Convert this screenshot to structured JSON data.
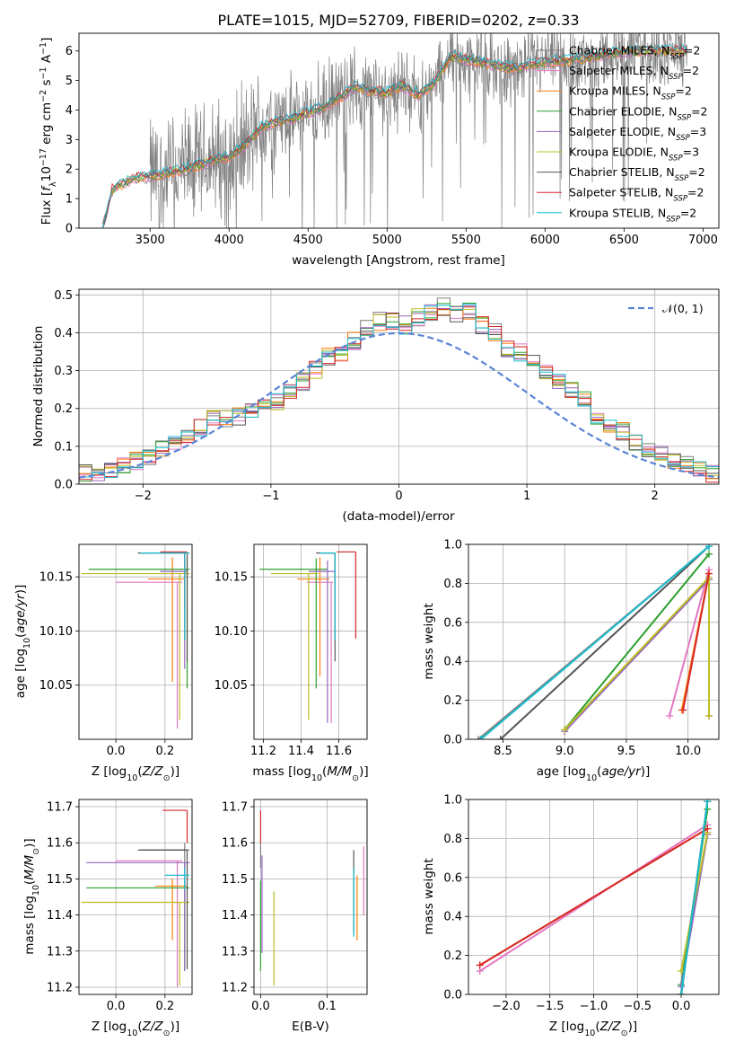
{
  "figure_title": "PLATE=1015, MJD=52709, FIBERID=0202, z=0.33",
  "model_colors": {
    "Chabrier MILES": "#7f7f7f",
    "Salpeter MILES": "#e377c2",
    "Kroupa MILES": "#ff7f0e",
    "Chabrier ELODIE": "#2ca02c",
    "Salpeter ELODIE": "#9467bd",
    "Kroupa ELODIE": "#bcbd22",
    "Chabrier STELIB": "#555555",
    "Salpeter STELIB": "#d62728",
    "Kroupa STELIB": "#17becf"
  },
  "chart_data": [
    {
      "id": "spectrum",
      "type": "line",
      "title": "PLATE=1015, MJD=52709, FIBERID=0202, z=0.33",
      "xlabel": "wavelength [Angstrom, rest frame]",
      "ylabel": "Flux [f_λ 10^-17 erg cm^-2 s^-1 A^-1]",
      "xlim": [
        3050,
        7100
      ],
      "ylim": [
        0,
        6.6
      ],
      "xticks": [
        3500,
        4000,
        4500,
        5000,
        5500,
        6000,
        6500,
        7000
      ],
      "yticks": [
        0,
        1,
        2,
        3,
        4,
        5,
        6
      ],
      "legend_position": "upper right",
      "series": [
        {
          "name": "Chabrier MILES, N_SSP=2",
          "color": "#7f7f7f"
        },
        {
          "name": "Salpeter MILES, N_SSP=2",
          "color": "#e377c2"
        },
        {
          "name": "Kroupa MILES, N_SSP=2",
          "color": "#ff7f0e"
        },
        {
          "name": "Chabrier ELODIE, N_SSP=2",
          "color": "#2ca02c"
        },
        {
          "name": "Salpeter ELODIE, N_SSP=3",
          "color": "#9467bd"
        },
        {
          "name": "Kroupa ELODIE, N_SSP=3",
          "color": "#bcbd22"
        },
        {
          "name": "Chabrier STELIB, N_SSP=2",
          "color": "#555555"
        },
        {
          "name": "Salpeter STELIB, N_SSP=2",
          "color": "#d62728"
        },
        {
          "name": "Kroupa STELIB, N_SSP=2",
          "color": "#17becf"
        }
      ],
      "continuum_x": [
        3200,
        3260,
        3400,
        3500,
        3600,
        3700,
        3800,
        3900,
        4000,
        4100,
        4200,
        4300,
        4400,
        4500,
        4600,
        4700,
        4800,
        4900,
        5000,
        5100,
        5200,
        5300,
        5400,
        5500,
        5600,
        5800,
        6000,
        6200,
        6400,
        6600,
        6800,
        6900
      ],
      "continuum_y": [
        0.0,
        1.3,
        1.7,
        1.75,
        1.85,
        1.95,
        2.1,
        2.3,
        2.4,
        2.8,
        3.4,
        3.6,
        3.7,
        3.9,
        4.1,
        4.4,
        4.8,
        4.6,
        4.6,
        4.8,
        4.5,
        4.9,
        5.8,
        5.7,
        5.6,
        5.4,
        5.6,
        5.7,
        5.9,
        6.0,
        6.0,
        6.0
      ],
      "noisy_data_range": [
        3500,
        6900
      ]
    },
    {
      "id": "residuals",
      "type": "histogram",
      "xlabel": "(data-model)/error",
      "ylabel": "Normed distribution",
      "xlim": [
        -2.5,
        2.5
      ],
      "ylim": [
        0,
        0.515
      ],
      "xticks": [
        -2,
        -1,
        0,
        1,
        2
      ],
      "yticks": [
        0.0,
        0.1,
        0.2,
        0.3,
        0.4,
        0.5
      ],
      "grid": true,
      "legend_position": "upper right",
      "reference_curve": {
        "name": "𝒩(0, 1)",
        "mean": 0,
        "sigma": 1,
        "color": "#5b84d6",
        "style": "dashed"
      },
      "bin_width": 0.1,
      "bin_start": -2.5,
      "base_values": [
        0.03,
        0.03,
        0.04,
        0.05,
        0.06,
        0.07,
        0.09,
        0.11,
        0.13,
        0.15,
        0.17,
        0.17,
        0.18,
        0.2,
        0.21,
        0.22,
        0.25,
        0.27,
        0.3,
        0.34,
        0.35,
        0.38,
        0.41,
        0.43,
        0.43,
        0.42,
        0.44,
        0.45,
        0.47,
        0.45,
        0.46,
        0.42,
        0.4,
        0.36,
        0.35,
        0.33,
        0.3,
        0.27,
        0.25,
        0.23,
        0.18,
        0.15,
        0.14,
        0.11,
        0.09,
        0.08,
        0.06,
        0.05,
        0.04,
        0.03
      ]
    },
    {
      "id": "age_vs_Z",
      "type": "scatter",
      "xlabel": "Z [log10(Z/Z⊙)]",
      "ylabel": "age  [log10(age/yr)]",
      "xlim": [
        -0.15,
        0.31
      ],
      "ylim": [
        10.0,
        10.18
      ],
      "xticks": [
        0.0,
        0.2
      ],
      "yticks": [
        10.05,
        10.1,
        10.15
      ],
      "grid": true,
      "points": [
        {
          "model": "Chabrier MILES",
          "color": "#7f7f7f",
          "x": 0.28,
          "y": 10.172,
          "x_err": [
            0.18,
            0.02
          ],
          "y_err": [
            0.08,
            0.0
          ]
        },
        {
          "model": "Salpeter MILES",
          "color": "#e377c2",
          "x": 0.25,
          "y": 10.145,
          "x_err": [
            0.25,
            0.02
          ],
          "y_err": [
            0.135,
            0.0
          ]
        },
        {
          "model": "Kroupa MILES",
          "color": "#ff7f0e",
          "x": 0.23,
          "y": 10.148,
          "x_err": [
            0.1,
            0.05
          ],
          "y_err": [
            0.095,
            0.02
          ]
        },
        {
          "model": "Chabrier ELODIE",
          "color": "#2ca02c",
          "x": 0.29,
          "y": 10.157,
          "x_err": [
            0.4,
            0.01
          ],
          "y_err": [
            0.11,
            0.01
          ]
        },
        {
          "model": "Salpeter ELODIE",
          "color": "#9467bd",
          "x": 0.28,
          "y": 10.155,
          "x_err": [
            0.1,
            0.01
          ],
          "y_err": [
            0.09,
            0.01
          ]
        },
        {
          "model": "Kroupa ELODIE",
          "color": "#bcbd22",
          "x": 0.26,
          "y": 10.153,
          "x_err": [
            0.4,
            0.04
          ],
          "y_err": [
            0.135,
            0.0
          ]
        },
        {
          "model": "Chabrier STELIB",
          "color": "#555555",
          "x": 0.29,
          "y": 10.172,
          "x_err": [
            0.2,
            0.0
          ],
          "y_err": [
            0.1,
            0.0
          ]
        },
        {
          "model": "Salpeter STELIB",
          "color": "#d62728",
          "x": 0.28,
          "y": 10.173,
          "x_err": [
            0.1,
            0.01
          ],
          "y_err": [
            0.05,
            0.0
          ]
        },
        {
          "model": "Kroupa STELIB",
          "color": "#17becf",
          "x": 0.28,
          "y": 10.172,
          "x_err": [
            0.18,
            0.02
          ],
          "y_err": [
            0.08,
            0.0
          ]
        }
      ]
    },
    {
      "id": "age_vs_mass",
      "type": "scatter",
      "xlabel": "mass [log10(M/M⊙)]",
      "xlim": [
        11.15,
        11.75
      ],
      "ylim": [
        10.0,
        10.18
      ],
      "xticks": [
        11.2,
        11.4,
        11.6
      ],
      "yticks": [
        10.05,
        10.1,
        10.15
      ],
      "grid": true,
      "points": [
        {
          "model": "Chabrier MILES",
          "color": "#7f7f7f",
          "x": 11.58,
          "y": 10.172,
          "x_err": [
            0.08,
            0.0
          ],
          "y_err": [
            0.08,
            0.0
          ]
        },
        {
          "model": "Salpeter MILES",
          "color": "#e377c2",
          "x": 11.56,
          "y": 10.145,
          "x_err": [
            0.13,
            0.01
          ],
          "y_err": [
            0.13,
            0.0
          ]
        },
        {
          "model": "Kroupa MILES",
          "color": "#ff7f0e",
          "x": 11.5,
          "y": 10.148,
          "x_err": [
            0.12,
            0.05
          ],
          "y_err": [
            0.09,
            0.02
          ]
        },
        {
          "model": "Chabrier ELODIE",
          "color": "#2ca02c",
          "x": 11.48,
          "y": 10.157,
          "x_err": [
            0.3,
            0.06
          ],
          "y_err": [
            0.11,
            0.01
          ]
        },
        {
          "model": "Salpeter ELODIE",
          "color": "#9467bd",
          "x": 11.54,
          "y": 10.155,
          "x_err": [
            0.1,
            0.04
          ],
          "y_err": [
            0.14,
            0.01
          ]
        },
        {
          "model": "Kroupa ELODIE",
          "color": "#bcbd22",
          "x": 11.44,
          "y": 10.153,
          "x_err": [
            0.2,
            0.05
          ],
          "y_err": [
            0.135,
            0.0
          ]
        },
        {
          "model": "Chabrier STELIB",
          "color": "#555555",
          "x": 11.58,
          "y": 10.172,
          "x_err": [
            0.1,
            0.0
          ],
          "y_err": [
            0.1,
            0.0
          ]
        },
        {
          "model": "Salpeter STELIB",
          "color": "#d62728",
          "x": 11.69,
          "y": 10.173,
          "x_err": [
            0.1,
            0.0
          ],
          "y_err": [
            0.08,
            0.0
          ]
        },
        {
          "model": "Kroupa STELIB",
          "color": "#17becf",
          "x": 11.58,
          "y": 10.172,
          "x_err": [
            0.08,
            0.0
          ],
          "y_err": [
            0.08,
            0.0
          ]
        }
      ]
    },
    {
      "id": "weight_vs_age",
      "type": "line",
      "xlabel": "age  [log10(age/yr)]",
      "ylabel": "mass weight",
      "xlim": [
        8.22,
        10.25
      ],
      "ylim": [
        0.0,
        1.0
      ],
      "xticks": [
        8.5,
        9.0,
        9.5,
        10.0
      ],
      "yticks": [
        0.0,
        0.2,
        0.4,
        0.6,
        0.8,
        1.0
      ],
      "grid": true,
      "series": [
        {
          "model": "Chabrier MILES",
          "color": "#7f7f7f",
          "x": [
            8.3,
            10.17
          ],
          "y": [
            0.0,
            0.99
          ]
        },
        {
          "model": "Salpeter MILES",
          "color": "#e377c2",
          "x": [
            9.85,
            10.17
          ],
          "y": [
            0.12,
            0.87
          ]
        },
        {
          "model": "Kroupa MILES",
          "color": "#ff7f0e",
          "x": [
            9.95,
            10.17
          ],
          "y": [
            0.15,
            0.85
          ]
        },
        {
          "model": "Chabrier ELODIE",
          "color": "#2ca02c",
          "x": [
            9.0,
            10.17
          ],
          "y": [
            0.05,
            0.95
          ]
        },
        {
          "model": "Salpeter ELODIE",
          "color": "#9467bd",
          "x": [
            9.0,
            10.17,
            10.17
          ],
          "y": [
            0.04,
            0.82,
            0.12
          ]
        },
        {
          "model": "Kroupa ELODIE",
          "color": "#bcbd22",
          "x": [
            9.0,
            10.17,
            10.17
          ],
          "y": [
            0.05,
            0.83,
            0.12
          ]
        },
        {
          "model": "Chabrier STELIB",
          "color": "#555555",
          "x": [
            8.48,
            10.17
          ],
          "y": [
            0.0,
            0.99
          ]
        },
        {
          "model": "Salpeter STELIB",
          "color": "#d62728",
          "x": [
            9.96,
            10.17
          ],
          "y": [
            0.15,
            0.85
          ]
        },
        {
          "model": "Kroupa STELIB",
          "color": "#17becf",
          "x": [
            8.32,
            10.17
          ],
          "y": [
            0.0,
            0.99
          ]
        }
      ]
    },
    {
      "id": "mass_vs_Z",
      "type": "scatter",
      "xlabel": "Z [log10(Z/Z⊙)]",
      "ylabel": "mass [log10(M/M⊙)]",
      "xlim": [
        -0.15,
        0.31
      ],
      "ylim": [
        11.18,
        11.72
      ],
      "xticks": [
        0.0,
        0.2
      ],
      "yticks": [
        11.2,
        11.3,
        11.4,
        11.5,
        11.6,
        11.7
      ],
      "grid": true,
      "points": [
        {
          "model": "Chabrier MILES",
          "color": "#7f7f7f",
          "x": 0.28,
          "y": 11.58,
          "x_err": [
            0.18,
            0.02
          ],
          "y_err": [
            0.05,
            0.02
          ]
        },
        {
          "model": "Salpeter MILES",
          "color": "#e377c2",
          "x": 0.25,
          "y": 11.55,
          "x_err": [
            0.25,
            0.02
          ],
          "y_err": [
            0.35,
            0.0
          ]
        },
        {
          "model": "Kroupa MILES",
          "color": "#ff7f0e",
          "x": 0.23,
          "y": 11.48,
          "x_err": [
            0.07,
            0.06
          ],
          "y_err": [
            0.15,
            0.02
          ]
        },
        {
          "model": "Chabrier ELODIE",
          "color": "#2ca02c",
          "x": 0.28,
          "y": 11.475,
          "x_err": [
            0.4,
            0.02
          ],
          "y_err": [
            0.23,
            0.02
          ]
        },
        {
          "model": "Salpeter ELODIE",
          "color": "#9467bd",
          "x": 0.28,
          "y": 11.545,
          "x_err": [
            0.4,
            0.02
          ],
          "y_err": [
            0.3,
            0.0
          ]
        },
        {
          "model": "Kroupa ELODIE",
          "color": "#bcbd22",
          "x": 0.26,
          "y": 11.435,
          "x_err": [
            0.4,
            0.04
          ],
          "y_err": [
            0.23,
            0.0
          ]
        },
        {
          "model": "Chabrier STELIB",
          "color": "#555555",
          "x": 0.29,
          "y": 11.58,
          "x_err": [
            0.2,
            0.0
          ],
          "y_err": [
            0.33,
            0.0
          ]
        },
        {
          "model": "Salpeter STELIB",
          "color": "#d62728",
          "x": 0.29,
          "y": 11.69,
          "x_err": [
            0.1,
            0.0
          ],
          "y_err": [
            0.09,
            0.0
          ]
        },
        {
          "model": "Kroupa STELIB",
          "color": "#17becf",
          "x": 0.28,
          "y": 11.51,
          "x_err": [
            0.08,
            0.02
          ],
          "y_err": [
            0.04,
            0.02
          ]
        }
      ]
    },
    {
      "id": "mass_vs_ebv",
      "type": "scatter",
      "xlabel": "E(B-V)",
      "xlim": [
        -0.01,
        0.16
      ],
      "ylim": [
        11.18,
        11.72
      ],
      "xticks": [
        0.0,
        0.1
      ],
      "yticks": [
        11.2,
        11.3,
        11.4,
        11.5,
        11.6,
        11.7
      ],
      "grid": true,
      "points": [
        {
          "model": "Chabrier MILES",
          "color": "#7f7f7f",
          "x": 0.0,
          "y": 11.58,
          "y_err": [
            0.05,
            0.02
          ]
        },
        {
          "model": "Salpeter MILES",
          "color": "#e377c2",
          "x": 0.155,
          "y": 11.55,
          "y_err": [
            0.15,
            0.04
          ]
        },
        {
          "model": "Kroupa MILES",
          "color": "#ff7f0e",
          "x": 0.145,
          "y": 11.48,
          "y_err": [
            0.15,
            0.03
          ]
        },
        {
          "model": "Chabrier ELODIE",
          "color": "#2ca02c",
          "x": 0.0,
          "y": 11.475,
          "y_err": [
            0.23,
            0.02
          ]
        },
        {
          "model": "Salpeter ELODIE",
          "color": "#9467bd",
          "x": 0.002,
          "y": 11.545,
          "y_err": [
            0.25,
            0.02
          ]
        },
        {
          "model": "Kroupa ELODIE",
          "color": "#bcbd22",
          "x": 0.02,
          "y": 11.435,
          "y_err": [
            0.23,
            0.03
          ]
        },
        {
          "model": "Chabrier STELIB",
          "color": "#555555",
          "x": 0.14,
          "y": 11.58,
          "y_err": [
            0.23,
            0.0
          ]
        },
        {
          "model": "Salpeter STELIB",
          "color": "#d62728",
          "x": 0.0,
          "y": 11.69,
          "y_err": [
            0.09,
            0.0
          ]
        },
        {
          "model": "Kroupa STELIB",
          "color": "#17becf",
          "x": 0.14,
          "y": 11.51,
          "y_err": [
            0.17,
            0.02
          ]
        }
      ]
    },
    {
      "id": "weight_vs_Z",
      "type": "line",
      "xlabel": "Z [log10(Z/Z⊙)]",
      "ylabel": "mass weight",
      "xlim": [
        -2.43,
        0.43
      ],
      "ylim": [
        0.0,
        1.0
      ],
      "xticks": [
        -2.0,
        -1.5,
        -1.0,
        -0.5,
        0.0
      ],
      "yticks": [
        0.0,
        0.2,
        0.4,
        0.6,
        0.8,
        1.0
      ],
      "grid": true,
      "series": [
        {
          "model": "Chabrier MILES",
          "color": "#7f7f7f",
          "x": [
            0.0,
            0.3
          ],
          "y": [
            0.0,
            0.99
          ]
        },
        {
          "model": "Salpeter MILES",
          "color": "#e377c2",
          "x": [
            -2.3,
            0.3
          ],
          "y": [
            0.12,
            0.87
          ]
        },
        {
          "model": "Kroupa MILES",
          "color": "#ff7f0e",
          "x": [
            -2.3,
            0.3
          ],
          "y": [
            0.15,
            0.85
          ]
        },
        {
          "model": "Chabrier ELODIE",
          "color": "#2ca02c",
          "x": [
            0.0,
            0.3
          ],
          "y": [
            0.05,
            0.95
          ]
        },
        {
          "model": "Salpeter ELODIE",
          "color": "#9467bd",
          "x": [
            0.0,
            0.3
          ],
          "y": [
            0.04,
            0.82
          ]
        },
        {
          "model": "Kroupa ELODIE",
          "color": "#bcbd22",
          "x": [
            0.0,
            0.3
          ],
          "y": [
            0.12,
            0.83
          ]
        },
        {
          "model": "Chabrier STELIB",
          "color": "#555555",
          "x": [
            0.0,
            0.3
          ],
          "y": [
            0.0,
            0.99
          ]
        },
        {
          "model": "Salpeter STELIB",
          "color": "#d62728",
          "x": [
            -2.3,
            0.3
          ],
          "y": [
            0.15,
            0.85
          ]
        },
        {
          "model": "Kroupa STELIB",
          "color": "#17becf",
          "x": [
            0.0,
            0.3
          ],
          "y": [
            0.0,
            0.99
          ]
        }
      ]
    }
  ]
}
